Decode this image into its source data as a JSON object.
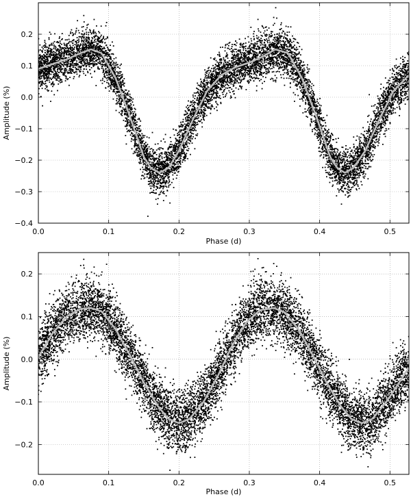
{
  "chart_data": [
    {
      "type": "scatter",
      "xlabel": "Phase (d)",
      "ylabel": "Amplitude (%)",
      "xlim": [
        0.0,
        0.527
      ],
      "ylim": [
        -0.4,
        0.3
      ],
      "xticks": [
        0.0,
        0.1,
        0.2,
        0.3,
        0.4,
        0.5
      ],
      "xtick_labels": [
        "0.0",
        "0.1",
        "0.2",
        "0.3",
        "0.4",
        "0.5"
      ],
      "yticks": [
        0.2,
        0.1,
        0.0,
        -0.1,
        -0.2,
        -0.3,
        -0.4
      ],
      "ytick_labels": [
        "0.2",
        "0.1",
        "0.0",
        "−0.1",
        "−0.2",
        "−0.3",
        "−0.4"
      ],
      "grid": true,
      "colors": {
        "points": "#000000",
        "fit": "#bdbdbd"
      },
      "series": [
        {
          "kind": "scatter",
          "point_spread": 0.035,
          "x": [
            0.0,
            0.02,
            0.04,
            0.06,
            0.075,
            0.09,
            0.11,
            0.13,
            0.15,
            0.16,
            0.172,
            0.185,
            0.2,
            0.22,
            0.24,
            0.26,
            0.28,
            0.3,
            0.32,
            0.337,
            0.355,
            0.375,
            0.395,
            0.415,
            0.425,
            0.436,
            0.448,
            0.465,
            0.485,
            0.505,
            0.527
          ],
          "y": [
            0.09,
            0.105,
            0.12,
            0.14,
            0.152,
            0.14,
            0.06,
            -0.06,
            -0.19,
            -0.225,
            -0.24,
            -0.225,
            -0.17,
            -0.07,
            0.02,
            0.07,
            0.095,
            0.11,
            0.13,
            0.152,
            0.14,
            0.06,
            -0.06,
            -0.19,
            -0.225,
            -0.24,
            -0.225,
            -0.17,
            -0.07,
            0.02,
            0.07
          ]
        },
        {
          "kind": "line",
          "x": [
            0.0,
            0.02,
            0.04,
            0.06,
            0.075,
            0.09,
            0.11,
            0.13,
            0.15,
            0.16,
            0.172,
            0.185,
            0.2,
            0.22,
            0.24,
            0.26,
            0.28,
            0.3,
            0.32,
            0.337,
            0.355,
            0.375,
            0.395,
            0.415,
            0.425,
            0.436,
            0.448,
            0.465,
            0.485,
            0.505,
            0.527
          ],
          "y": [
            0.09,
            0.105,
            0.12,
            0.14,
            0.152,
            0.14,
            0.06,
            -0.06,
            -0.19,
            -0.225,
            -0.24,
            -0.225,
            -0.17,
            -0.07,
            0.02,
            0.07,
            0.095,
            0.11,
            0.13,
            0.152,
            0.14,
            0.06,
            -0.06,
            -0.19,
            -0.225,
            -0.24,
            -0.225,
            -0.17,
            -0.07,
            0.02,
            0.07
          ]
        }
      ]
    },
    {
      "type": "scatter",
      "xlabel": "Phase (d)",
      "ylabel": "Amplitude (%)",
      "xlim": [
        0.0,
        0.527
      ],
      "ylim": [
        -0.27,
        0.25
      ],
      "xticks": [
        0.0,
        0.1,
        0.2,
        0.3,
        0.4,
        0.5
      ],
      "xtick_labels": [
        "0.0",
        "0.1",
        "0.2",
        "0.3",
        "0.4",
        "0.5"
      ],
      "yticks": [
        0.2,
        0.1,
        0.0,
        -0.1,
        -0.2
      ],
      "ytick_labels": [
        "0.2",
        "0.1",
        "0.0",
        "−0.1",
        "−0.2"
      ],
      "grid": true,
      "colors": {
        "points": "#000000",
        "fit": "#bdbdbd"
      },
      "series": [
        {
          "kind": "scatter",
          "point_spread": 0.035,
          "x": [
            0.0,
            0.02,
            0.04,
            0.06,
            0.075,
            0.09,
            0.11,
            0.13,
            0.15,
            0.17,
            0.185,
            0.2,
            0.215,
            0.235,
            0.255,
            0.275,
            0.295,
            0.315,
            0.335,
            0.35,
            0.37,
            0.39,
            0.41,
            0.43,
            0.445,
            0.46,
            0.475,
            0.495,
            0.515,
            0.527
          ],
          "y": [
            0.005,
            0.06,
            0.1,
            0.118,
            0.12,
            0.112,
            0.07,
            0.01,
            -0.055,
            -0.11,
            -0.14,
            -0.15,
            -0.14,
            -0.1,
            -0.04,
            0.03,
            0.085,
            0.115,
            0.12,
            0.11,
            0.07,
            0.01,
            -0.055,
            -0.11,
            -0.14,
            -0.15,
            -0.14,
            -0.1,
            -0.05,
            -0.02
          ]
        },
        {
          "kind": "line",
          "x": [
            0.0,
            0.02,
            0.04,
            0.06,
            0.075,
            0.09,
            0.11,
            0.13,
            0.15,
            0.17,
            0.185,
            0.2,
            0.215,
            0.235,
            0.255,
            0.275,
            0.295,
            0.315,
            0.335,
            0.35,
            0.37,
            0.39,
            0.41,
            0.43,
            0.445,
            0.46,
            0.475,
            0.495,
            0.515,
            0.527
          ],
          "y": [
            0.005,
            0.06,
            0.1,
            0.118,
            0.12,
            0.112,
            0.07,
            0.01,
            -0.055,
            -0.11,
            -0.14,
            -0.15,
            -0.14,
            -0.1,
            -0.04,
            0.03,
            0.085,
            0.115,
            0.12,
            0.11,
            0.07,
            0.01,
            -0.055,
            -0.11,
            -0.14,
            -0.15,
            -0.14,
            -0.1,
            -0.05,
            -0.02
          ]
        }
      ]
    }
  ]
}
